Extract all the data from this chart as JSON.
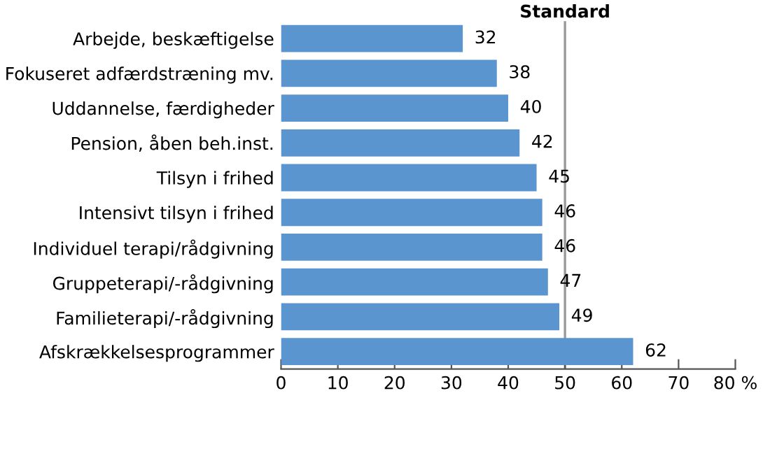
{
  "chart_data": {
    "type": "bar",
    "orientation": "horizontal",
    "categories": [
      "Arbejde, beskæftigelse",
      "Fokuseret adfærdstræning mv.",
      "Uddannelse, færdigheder",
      "Pension, åben beh.inst.",
      "Tilsyn i frihed",
      "Intensivt tilsyn i frihed",
      "Individuel terapi/rådgivning",
      "Gruppeterapi/-rådgivning",
      "Familieterapi/-rådgivning",
      "Afskrækkelsesprogrammer"
    ],
    "values": [
      32,
      38,
      40,
      42,
      45,
      46,
      46,
      47,
      49,
      62
    ],
    "color": "#5b95d0",
    "data_labels": true,
    "xlim": [
      0,
      80
    ],
    "xticks": [
      0,
      10,
      20,
      30,
      40,
      50,
      60,
      70,
      {
        "value": 80,
        "label": "80 %"
      }
    ],
    "ref_lines": [
      {
        "axis": "x",
        "value": 50,
        "label": "Standard",
        "color": "#999999"
      }
    ],
    "grid": false,
    "legend": false
  }
}
